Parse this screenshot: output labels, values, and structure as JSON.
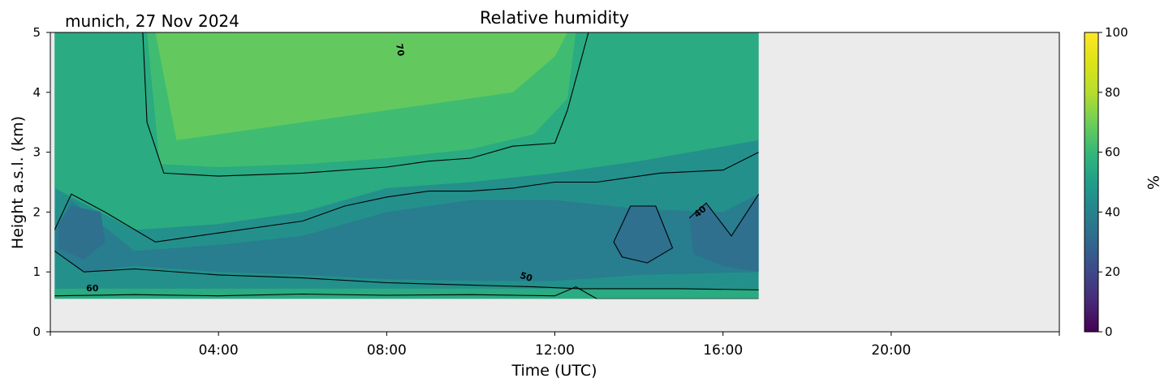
{
  "chart_data": {
    "type": "heatmap",
    "title": "Relative humidity",
    "location_date": "munich, 27 Nov 2024",
    "xlabel": "Time (UTC)",
    "ylabel": "Height a.s.l. (km)",
    "x_tick_labels": [
      "04:00",
      "08:00",
      "12:00",
      "16:00",
      "20:00"
    ],
    "x_tick_hours": [
      4,
      8,
      12,
      16,
      20
    ],
    "xlim_hours": [
      0,
      24
    ],
    "data_end_hour": 16.85,
    "ylim": [
      0,
      5
    ],
    "y_ticks": [
      0,
      1,
      2,
      3,
      4,
      5
    ],
    "data_bottom_km": 0.55,
    "colorbar": {
      "label": "%",
      "range": [
        0,
        100
      ],
      "ticks": [
        0,
        20,
        40,
        60,
        80,
        100
      ],
      "colormap": "viridis"
    },
    "contour_levels_labeled": [
      40,
      50,
      60,
      70
    ],
    "contour_lines": [
      {
        "level": 60,
        "points": [
          [
            0.1,
            0.6
          ],
          [
            2,
            0.62
          ],
          [
            4,
            0.6
          ],
          [
            6,
            0.63
          ],
          [
            8,
            0.61
          ],
          [
            10,
            0.62
          ],
          [
            12,
            0.6
          ],
          [
            12.5,
            0.75
          ],
          [
            13,
            0.55
          ],
          [
            16.85,
            0.55
          ]
        ]
      },
      {
        "level": 50,
        "points": [
          [
            0.1,
            1.35
          ],
          [
            0.8,
            1.0
          ],
          [
            2,
            1.05
          ],
          [
            4,
            0.95
          ],
          [
            6,
            0.9
          ],
          [
            8,
            0.82
          ],
          [
            10,
            0.78
          ],
          [
            11.5,
            0.75
          ],
          [
            12.6,
            0.72
          ],
          [
            13.2,
            0.72
          ],
          [
            15,
            0.72
          ],
          [
            16.85,
            0.7
          ]
        ]
      },
      {
        "level": 50,
        "points": [
          [
            0.1,
            1.7
          ],
          [
            0.5,
            2.3
          ],
          [
            1.3,
            2.0
          ],
          [
            2.5,
            1.5
          ],
          [
            4,
            1.65
          ],
          [
            6,
            1.85
          ],
          [
            7,
            2.1
          ],
          [
            8,
            2.25
          ],
          [
            9,
            2.35
          ],
          [
            10,
            2.35
          ],
          [
            11,
            2.4
          ],
          [
            12,
            2.5
          ],
          [
            13,
            2.5
          ],
          [
            14.5,
            2.65
          ],
          [
            16,
            2.7
          ],
          [
            16.85,
            3.0
          ]
        ]
      },
      {
        "level": 60,
        "points": [
          [
            2.2,
            5.0
          ],
          [
            2.3,
            3.5
          ],
          [
            2.7,
            2.65
          ],
          [
            4,
            2.6
          ],
          [
            6,
            2.65
          ],
          [
            8,
            2.75
          ],
          [
            9,
            2.85
          ],
          [
            10,
            2.9
          ],
          [
            11,
            3.1
          ],
          [
            12,
            3.15
          ],
          [
            12.3,
            3.7
          ],
          [
            12.8,
            5.0
          ]
        ]
      },
      {
        "level": 40,
        "points": [
          [
            15.2,
            1.9
          ],
          [
            15.6,
            2.15
          ],
          [
            16.2,
            1.6
          ],
          [
            16.85,
            2.3
          ]
        ]
      },
      {
        "level": 40,
        "points": [
          [
            13.4,
            1.5
          ],
          [
            13.8,
            2.1
          ],
          [
            14.4,
            2.1
          ],
          [
            14.8,
            1.4
          ],
          [
            14.2,
            1.15
          ],
          [
            13.6,
            1.25
          ],
          [
            13.4,
            1.5
          ]
        ]
      }
    ],
    "contour_text": [
      {
        "text": "60",
        "x": 1.0,
        "y": 0.68,
        "angle": 0
      },
      {
        "text": "50",
        "x": 11.3,
        "y": 0.87,
        "angle": 18
      },
      {
        "text": "40",
        "x": 15.5,
        "y": 1.97,
        "angle": -40
      },
      {
        "text": "70",
        "x": 8.25,
        "y": 4.7,
        "angle": 80
      }
    ],
    "fill_bands": [
      {
        "value": 45,
        "points": [
          [
            0.1,
            0.55
          ],
          [
            16.85,
            0.55
          ],
          [
            16.85,
            5.0
          ],
          [
            0.1,
            5.0
          ]
        ]
      },
      {
        "value": 55,
        "points": [
          [
            0.1,
            0.55
          ],
          [
            16.85,
            0.55
          ],
          [
            16.85,
            0.72
          ],
          [
            0.1,
            0.72
          ]
        ]
      },
      {
        "value": 55,
        "points": [
          [
            0.1,
            2.4
          ],
          [
            2,
            1.7
          ],
          [
            4,
            1.8
          ],
          [
            6,
            2.0
          ],
          [
            8,
            2.4
          ],
          [
            10,
            2.5
          ],
          [
            12,
            2.65
          ],
          [
            14,
            2.85
          ],
          [
            16.85,
            3.2
          ],
          [
            16.85,
            5.0
          ],
          [
            0.1,
            5.0
          ]
        ]
      },
      {
        "value": 62,
        "points": [
          [
            2.3,
            5.0
          ],
          [
            2.6,
            2.8
          ],
          [
            4,
            2.75
          ],
          [
            6,
            2.8
          ],
          [
            8,
            2.9
          ],
          [
            10,
            3.05
          ],
          [
            11.5,
            3.3
          ],
          [
            12.3,
            3.9
          ],
          [
            12.5,
            5.0
          ]
        ]
      },
      {
        "value": 68,
        "points": [
          [
            2.5,
            5.0
          ],
          [
            3.0,
            3.2
          ],
          [
            5,
            3.4
          ],
          [
            7,
            3.6
          ],
          [
            9,
            3.8
          ],
          [
            11,
            4.0
          ],
          [
            12,
            4.6
          ],
          [
            12.3,
            5.0
          ]
        ]
      },
      {
        "value": 38,
        "points": [
          [
            0.1,
            1.35
          ],
          [
            0.8,
            1.0
          ],
          [
            2,
            1.1
          ],
          [
            4,
            1.0
          ],
          [
            6,
            0.95
          ],
          [
            8,
            0.88
          ],
          [
            10,
            0.85
          ],
          [
            12,
            0.85
          ],
          [
            14,
            0.95
          ],
          [
            16.85,
            1.0
          ],
          [
            16.85,
            2.3
          ],
          [
            16,
            2.0
          ],
          [
            14,
            2.05
          ],
          [
            12,
            2.2
          ],
          [
            10,
            2.2
          ],
          [
            8,
            2.0
          ],
          [
            6,
            1.6
          ],
          [
            4,
            1.45
          ],
          [
            2,
            1.35
          ],
          [
            0.5,
            2.2
          ],
          [
            0.1,
            1.7
          ]
        ]
      },
      {
        "value": 33,
        "points": [
          [
            13.4,
            1.5
          ],
          [
            13.8,
            2.1
          ],
          [
            14.4,
            2.1
          ],
          [
            14.8,
            1.4
          ],
          [
            14.2,
            1.15
          ],
          [
            13.6,
            1.25
          ]
        ]
      },
      {
        "value": 33,
        "points": [
          [
            15.2,
            1.9
          ],
          [
            15.6,
            2.15
          ],
          [
            16.2,
            1.6
          ],
          [
            16.85,
            2.3
          ],
          [
            16.85,
            1.0
          ],
          [
            16.0,
            1.1
          ],
          [
            15.3,
            1.3
          ]
        ]
      },
      {
        "value": 33,
        "points": [
          [
            0.2,
            1.4
          ],
          [
            0.8,
            1.2
          ],
          [
            1.3,
            1.5
          ],
          [
            1.2,
            2.0
          ],
          [
            0.5,
            2.1
          ],
          [
            0.2,
            1.8
          ]
        ]
      }
    ]
  }
}
